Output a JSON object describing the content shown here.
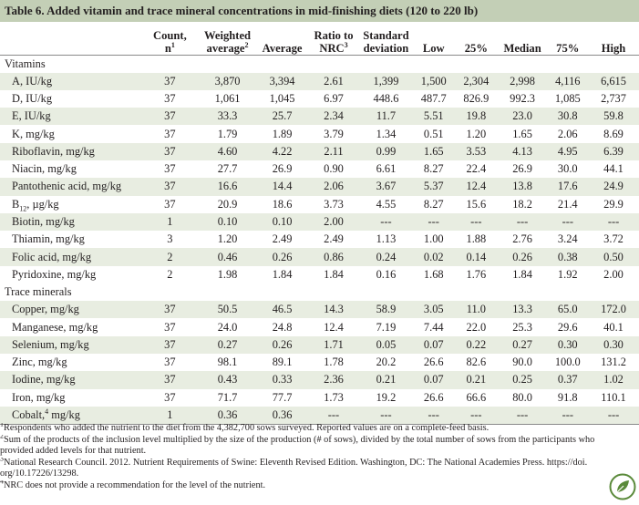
{
  "title": "Table 6. Added vitamin and trace mineral concentrations in mid-finishing diets (120 to 220 lb)",
  "headers": [
    {
      "l1": "",
      "l2": "",
      "sup": ""
    },
    {
      "l1": "Count,",
      "l2": "n",
      "sup": "1"
    },
    {
      "l1": "Weighted",
      "l2": "average",
      "sup": "2"
    },
    {
      "l1": "",
      "l2": "Average",
      "sup": ""
    },
    {
      "l1": "Ratio to",
      "l2": "NRC",
      "sup": "3"
    },
    {
      "l1": "Standard",
      "l2": "deviation",
      "sup": ""
    },
    {
      "l1": "",
      "l2": "Low",
      "sup": ""
    },
    {
      "l1": "",
      "l2": "25%",
      "sup": ""
    },
    {
      "l1": "",
      "l2": "Median",
      "sup": ""
    },
    {
      "l1": "",
      "l2": "75%",
      "sup": ""
    },
    {
      "l1": "",
      "l2": "High",
      "sup": ""
    }
  ],
  "sections": [
    {
      "name": "Vitamins",
      "rows": [
        {
          "label": "A, IU/kg",
          "values": [
            "37",
            "3,870",
            "3,394",
            "2.61",
            "1,399",
            "1,500",
            "2,304",
            "2,998",
            "4,116",
            "6,615"
          ]
        },
        {
          "label": "D, IU/kg",
          "values": [
            "37",
            "1,061",
            "1,045",
            "6.97",
            "448.6",
            "487.7",
            "826.9",
            "992.3",
            "1,085",
            "2,737"
          ]
        },
        {
          "label": "E, IU/kg",
          "values": [
            "37",
            "33.3",
            "25.7",
            "2.34",
            "11.7",
            "5.51",
            "19.8",
            "23.0",
            "30.8",
            "59.8"
          ]
        },
        {
          "label": "K, mg/kg",
          "values": [
            "37",
            "1.79",
            "1.89",
            "3.79",
            "1.34",
            "0.51",
            "1.20",
            "1.65",
            "2.06",
            "8.69"
          ]
        },
        {
          "label": "Riboflavin, mg/kg",
          "values": [
            "37",
            "4.60",
            "4.22",
            "2.11",
            "0.99",
            "1.65",
            "3.53",
            "4.13",
            "4.95",
            "6.39"
          ]
        },
        {
          "label": "Niacin, mg/kg",
          "values": [
            "37",
            "27.7",
            "26.9",
            "0.90",
            "6.61",
            "8.27",
            "22.4",
            "26.9",
            "30.0",
            "44.1"
          ]
        },
        {
          "label": "Pantothenic acid, mg/kg",
          "values": [
            "37",
            "16.6",
            "14.4",
            "2.06",
            "3.67",
            "5.37",
            "12.4",
            "13.8",
            "17.6",
            "24.9"
          ]
        },
        {
          "label": "B",
          "label_sub": "12",
          "label_rest": ", µg/kg",
          "values": [
            "37",
            "20.9",
            "18.6",
            "3.73",
            "4.55",
            "8.27",
            "15.6",
            "18.2",
            "21.4",
            "29.9"
          ]
        },
        {
          "label": "Biotin, mg/kg",
          "values": [
            "1",
            "0.10",
            "0.10",
            "2.00",
            "---",
            "---",
            "---",
            "---",
            "---",
            "---"
          ]
        },
        {
          "label": "Thiamin, mg/kg",
          "values": [
            "3",
            "1.20",
            "2.49",
            "2.49",
            "1.13",
            "1.00",
            "1.88",
            "2.76",
            "3.24",
            "3.72"
          ]
        },
        {
          "label": "Folic acid, mg/kg",
          "values": [
            "2",
            "0.46",
            "0.26",
            "0.86",
            "0.24",
            "0.02",
            "0.14",
            "0.26",
            "0.38",
            "0.50"
          ]
        },
        {
          "label": "Pyridoxine, mg/kg",
          "values": [
            "2",
            "1.98",
            "1.84",
            "1.84",
            "0.16",
            "1.68",
            "1.76",
            "1.84",
            "1.92",
            "2.00"
          ]
        }
      ]
    },
    {
      "name": "Trace minerals",
      "rows": [
        {
          "label": "Copper, mg/kg",
          "values": [
            "37",
            "50.5",
            "46.5",
            "14.3",
            "58.9",
            "3.05",
            "11.0",
            "13.3",
            "65.0",
            "172.0"
          ]
        },
        {
          "label": "Manganese, mg/kg",
          "values": [
            "37",
            "24.0",
            "24.8",
            "12.4",
            "7.19",
            "7.44",
            "22.0",
            "25.3",
            "29.6",
            "40.1"
          ]
        },
        {
          "label": "Selenium, mg/kg",
          "values": [
            "37",
            "0.27",
            "0.26",
            "1.71",
            "0.05",
            "0.07",
            "0.22",
            "0.27",
            "0.30",
            "0.30"
          ]
        },
        {
          "label": "Zinc, mg/kg",
          "values": [
            "37",
            "98.1",
            "89.1",
            "1.78",
            "20.2",
            "26.6",
            "82.6",
            "90.0",
            "100.0",
            "131.2"
          ]
        },
        {
          "label": "Iodine, mg/kg",
          "values": [
            "37",
            "0.43",
            "0.33",
            "2.36",
            "0.21",
            "0.07",
            "0.21",
            "0.25",
            "0.37",
            "1.02"
          ]
        },
        {
          "label": "Iron, mg/kg",
          "values": [
            "37",
            "71.7",
            "77.7",
            "1.73",
            "19.2",
            "26.6",
            "66.6",
            "80.0",
            "91.8",
            "110.1"
          ]
        },
        {
          "label": "Cobalt,",
          "label_sup": "4",
          "label_rest": " mg/kg",
          "values": [
            "1",
            "0.36",
            "0.36",
            "---",
            "---",
            "---",
            "---",
            "---",
            "---",
            "---"
          ]
        }
      ]
    }
  ],
  "footnotes": [
    {
      "mark": "1",
      "text": "Respondents who added the nutrient to the diet from the 4,382,700 sows surveyed. Reported values are on a complete-feed basis."
    },
    {
      "mark": "2",
      "text": "Sum of the products of the inclusion level multiplied by the size of the production (# of sows), divided by the total number of sows from the participants who"
    },
    {
      "mark": "",
      "text": "provided added levels for that nutrient."
    },
    {
      "mark": "3",
      "text": "National Research Council. 2012. Nutrient Requirements of Swine: Eleventh Revised Edition. Washington, DC: The National Academies Press. https://doi."
    },
    {
      "mark": "",
      "text": "org/10.17226/13298."
    },
    {
      "mark": "4",
      "text": "NRC does not provide a recommendation for the level of the nutrient."
    }
  ],
  "colors": {
    "title_bg": "#c3cfb6",
    "row_shade": "#e8ede1",
    "logo_green": "#5a8a3a"
  },
  "icons": {
    "logo": "leaf-logo-icon"
  }
}
